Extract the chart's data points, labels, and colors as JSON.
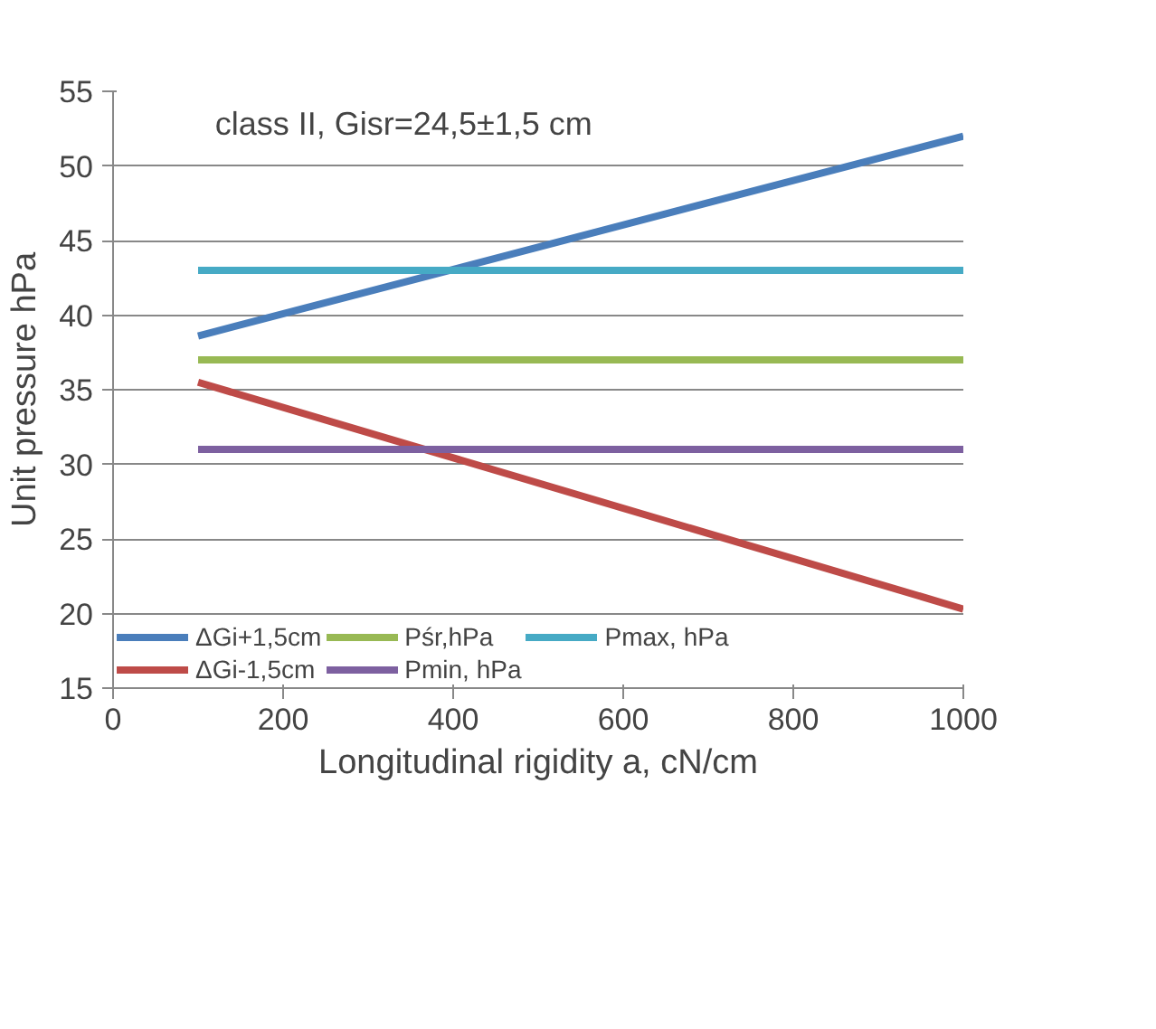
{
  "chart_data": {
    "type": "line",
    "xlabel": "Longitudinal rigidity a, cN/cm",
    "ylabel": "Unit pressure hPa",
    "annotations": [
      "class II, Gisr=24,5±1,5 cm"
    ],
    "x": [
      100,
      1000
    ],
    "series": [
      {
        "name": "ΔGi+1,5cm",
        "color": "#4a7ebb",
        "values": [
          38.6,
          52
        ]
      },
      {
        "name": "ΔGi-1,5cm",
        "color": "#be4b48",
        "values": [
          35.5,
          20.3
        ]
      },
      {
        "name": "Pśr,hPa",
        "color": "#98b954",
        "values": [
          37,
          37
        ]
      },
      {
        "name": "Pmin, hPa",
        "color": "#7d60a0",
        "values": [
          31,
          31
        ]
      },
      {
        "name": "Pmax, hPa",
        "color": "#46aac5",
        "values": [
          43,
          43
        ]
      }
    ],
    "xlim": [
      0,
      1000
    ],
    "xticks": [
      0,
      200,
      400,
      600,
      800,
      1000
    ],
    "ylim": [
      15,
      55
    ],
    "yticks": [
      15,
      20,
      25,
      30,
      35,
      40,
      45,
      50,
      55
    ],
    "grid": "y",
    "legend": "bottom",
    "marker": "none",
    "line_style": "solid"
  }
}
